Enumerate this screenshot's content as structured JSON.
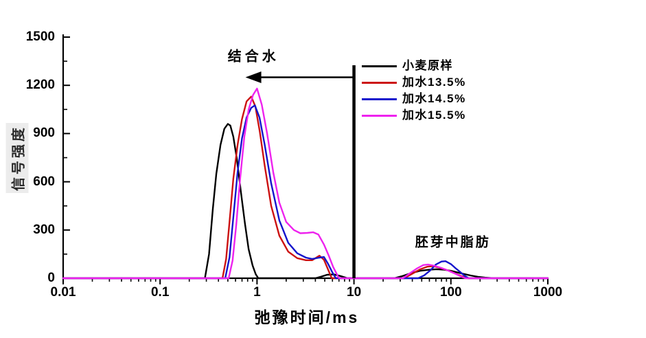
{
  "chart_data": {
    "type": "line",
    "title": "",
    "xlabel": "弛豫时间/ms",
    "ylabel": "信号强度",
    "x_scale": "log",
    "x_range": [
      0.01,
      1000
    ],
    "y_range": [
      0,
      1500
    ],
    "grid": false,
    "x_ticks": [
      "0.01",
      "0.1",
      "1",
      "10",
      "100",
      "1000"
    ],
    "x_tick_values": [
      0.01,
      0.1,
      1,
      10,
      100,
      1000
    ],
    "y_ticks": [
      "0",
      "300",
      "600",
      "900",
      "1200",
      "1500"
    ],
    "y_tick_values": [
      0,
      300,
      600,
      900,
      1200,
      1500
    ],
    "y_minor_step": 150,
    "legend": {
      "position": "upper-right-inside"
    },
    "marker_line": {
      "x_ms": 10,
      "y_from": 0,
      "y_to": 1325,
      "color": "#000000"
    },
    "annotations": [
      {
        "id": "bound-water",
        "text": "结合水",
        "x_ms": 0.92,
        "y": 1390,
        "arrow": {
          "from_x_ms": 10,
          "to_x_ms": 0.76,
          "y": 1250,
          "direction": "left"
        }
      },
      {
        "id": "germ-fat",
        "text": "胚芽中脂肪",
        "x_ms": 105,
        "y": 230
      }
    ],
    "series": [
      {
        "name": "小麦原样",
        "color": "#000000",
        "points": [
          [
            0.01,
            0
          ],
          [
            0.29,
            0
          ],
          [
            0.32,
            150
          ],
          [
            0.35,
            430
          ],
          [
            0.38,
            650
          ],
          [
            0.42,
            830
          ],
          [
            0.46,
            930
          ],
          [
            0.5,
            960
          ],
          [
            0.53,
            950
          ],
          [
            0.57,
            880
          ],
          [
            0.62,
            740
          ],
          [
            0.68,
            540
          ],
          [
            0.75,
            340
          ],
          [
            0.82,
            180
          ],
          [
            0.9,
            80
          ],
          [
            0.97,
            25
          ],
          [
            1.03,
            0
          ],
          [
            4.0,
            0
          ],
          [
            4.6,
            10
          ],
          [
            5.3,
            22
          ],
          [
            6.2,
            24
          ],
          [
            7.2,
            14
          ],
          [
            8.6,
            0
          ],
          [
            26,
            0
          ],
          [
            31,
            12
          ],
          [
            38,
            30
          ],
          [
            48,
            46
          ],
          [
            60,
            53
          ],
          [
            72,
            56
          ],
          [
            85,
            53
          ],
          [
            100,
            46
          ],
          [
            115,
            37
          ],
          [
            135,
            27
          ],
          [
            160,
            17
          ],
          [
            190,
            9
          ],
          [
            225,
            4
          ],
          [
            275,
            0
          ],
          [
            1000,
            0
          ]
        ]
      },
      {
        "name": "加水13.5%",
        "color": "#cc1111",
        "points": [
          [
            0.01,
            0
          ],
          [
            0.44,
            0
          ],
          [
            0.48,
            120
          ],
          [
            0.52,
            350
          ],
          [
            0.57,
            620
          ],
          [
            0.63,
            830
          ],
          [
            0.7,
            990
          ],
          [
            0.78,
            1100
          ],
          [
            0.87,
            1130
          ],
          [
            0.96,
            1070
          ],
          [
            1.07,
            910
          ],
          [
            1.2,
            700
          ],
          [
            1.4,
            450
          ],
          [
            1.7,
            265
          ],
          [
            2.1,
            165
          ],
          [
            2.6,
            125
          ],
          [
            3.2,
            112
          ],
          [
            3.7,
            112
          ],
          [
            4.4,
            140
          ],
          [
            4.9,
            115
          ],
          [
            5.4,
            55
          ],
          [
            5.9,
            0
          ],
          [
            33,
            0
          ],
          [
            40,
            28
          ],
          [
            48,
            55
          ],
          [
            57,
            72
          ],
          [
            66,
            75
          ],
          [
            76,
            66
          ],
          [
            88,
            54
          ],
          [
            100,
            42
          ],
          [
            112,
            28
          ],
          [
            126,
            15
          ],
          [
            140,
            5
          ],
          [
            150,
            0
          ],
          [
            1000,
            0
          ]
        ]
      },
      {
        "name": "加水14.5%",
        "color": "#1414cc",
        "points": [
          [
            0.01,
            0
          ],
          [
            0.47,
            0
          ],
          [
            0.52,
            130
          ],
          [
            0.57,
            380
          ],
          [
            0.63,
            660
          ],
          [
            0.7,
            870
          ],
          [
            0.78,
            1000
          ],
          [
            0.87,
            1060
          ],
          [
            0.95,
            1075
          ],
          [
            1.06,
            1000
          ],
          [
            1.2,
            830
          ],
          [
            1.4,
            590
          ],
          [
            1.7,
            360
          ],
          [
            2.1,
            220
          ],
          [
            2.6,
            155
          ],
          [
            3.2,
            128
          ],
          [
            3.7,
            120
          ],
          [
            4.4,
            128
          ],
          [
            4.9,
            132
          ],
          [
            5.4,
            90
          ],
          [
            6.0,
            35
          ],
          [
            6.5,
            0
          ],
          [
            46,
            0
          ],
          [
            53,
            18
          ],
          [
            61,
            48
          ],
          [
            70,
            85
          ],
          [
            80,
            104
          ],
          [
            88,
            106
          ],
          [
            100,
            88
          ],
          [
            112,
            62
          ],
          [
            125,
            38
          ],
          [
            138,
            16
          ],
          [
            153,
            0
          ],
          [
            1000,
            0
          ]
        ]
      },
      {
        "name": "加水15.5%",
        "color": "#ee22ee",
        "points": [
          [
            0.01,
            0
          ],
          [
            0.51,
            0
          ],
          [
            0.56,
            110
          ],
          [
            0.61,
            330
          ],
          [
            0.67,
            620
          ],
          [
            0.74,
            880
          ],
          [
            0.82,
            1050
          ],
          [
            0.91,
            1140
          ],
          [
            1.0,
            1180
          ],
          [
            1.12,
            1080
          ],
          [
            1.27,
            900
          ],
          [
            1.47,
            660
          ],
          [
            1.7,
            470
          ],
          [
            2.0,
            350
          ],
          [
            2.4,
            300
          ],
          [
            2.8,
            280
          ],
          [
            3.3,
            282
          ],
          [
            3.8,
            286
          ],
          [
            4.3,
            272
          ],
          [
            4.9,
            210
          ],
          [
            5.5,
            140
          ],
          [
            6.1,
            70
          ],
          [
            7.0,
            0
          ],
          [
            32,
            0
          ],
          [
            38,
            32
          ],
          [
            45,
            62
          ],
          [
            52,
            82
          ],
          [
            58,
            85
          ],
          [
            66,
            79
          ],
          [
            78,
            66
          ],
          [
            90,
            52
          ],
          [
            102,
            38
          ],
          [
            115,
            24
          ],
          [
            128,
            10
          ],
          [
            141,
            0
          ],
          [
            1000,
            0
          ]
        ]
      }
    ]
  }
}
